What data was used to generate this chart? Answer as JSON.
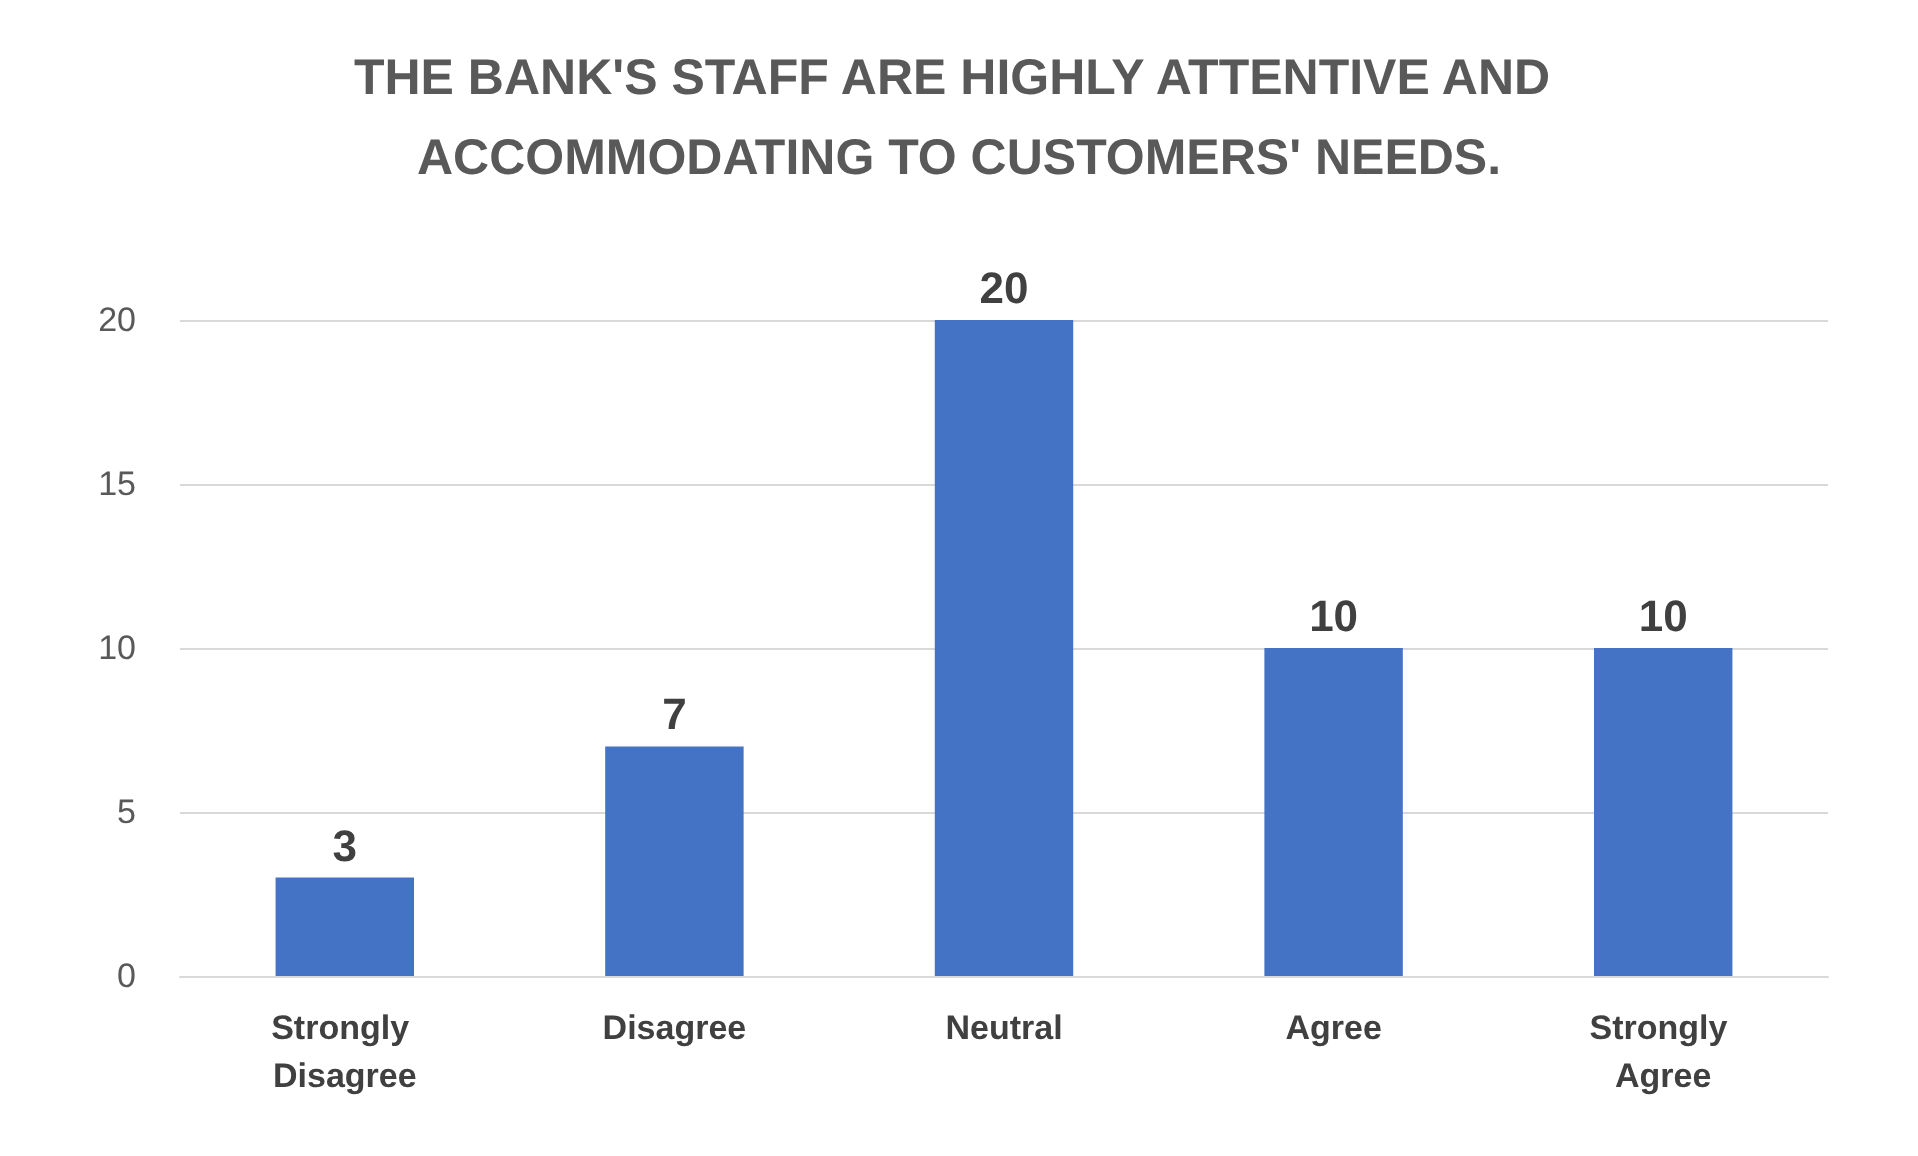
{
  "chart_data": {
    "type": "bar",
    "title": "THE BANK'S STAFF ARE HIGHLY ATTENTIVE AND ACCOMMODATING TO CUSTOMERS' NEEDS.",
    "categories": [
      "Strongly Disagree",
      "Disagree",
      "Neutral",
      "Agree",
      "Strongly Agree"
    ],
    "values": [
      3,
      7,
      20,
      10,
      10
    ],
    "color": "#4472c4",
    "ylim": [
      0,
      20
    ],
    "yticks": [
      0,
      5,
      10,
      15,
      20
    ],
    "grid": "y",
    "data_labels": true
  }
}
